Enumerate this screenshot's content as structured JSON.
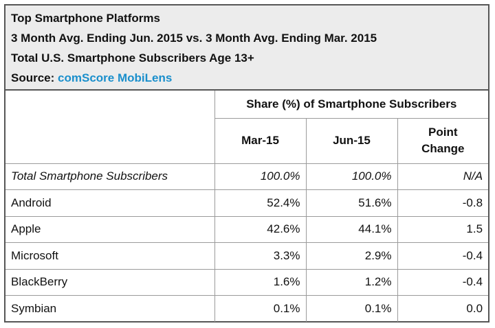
{
  "header": {
    "title": "Top Smartphone Platforms",
    "subtitle": "3 Month Avg. Ending Jun. 2015 vs. 3 Month Avg. Ending Mar. 2015",
    "population": "Total U.S. Smartphone Subscribers Age 13+",
    "source_label": "Source:",
    "source_name": "comScore MobiLens"
  },
  "chart_data": {
    "type": "table",
    "group_header": "Share (%) of Smartphone Subscribers",
    "columns": [
      "Mar-15",
      "Jun-15",
      "Point Change"
    ],
    "columns_display": [
      [
        "Mar-15"
      ],
      [
        "Jun-15"
      ],
      [
        "Point",
        "Change"
      ]
    ],
    "rows": [
      {
        "label": "Total Smartphone Subscribers",
        "values": [
          "100.0%",
          "100.0%",
          "N/A"
        ],
        "italic": true
      },
      {
        "label": "Android",
        "values": [
          "52.4%",
          "51.6%",
          "-0.8"
        ]
      },
      {
        "label": "Apple",
        "values": [
          "42.6%",
          "44.1%",
          "1.5"
        ]
      },
      {
        "label": "Microsoft",
        "values": [
          "3.3%",
          "2.9%",
          "-0.4"
        ]
      },
      {
        "label": "BlackBerry",
        "values": [
          "1.6%",
          "1.2%",
          "-0.4"
        ]
      },
      {
        "label": "Symbian",
        "values": [
          "0.1%",
          "0.1%",
          "0.0"
        ]
      }
    ]
  }
}
